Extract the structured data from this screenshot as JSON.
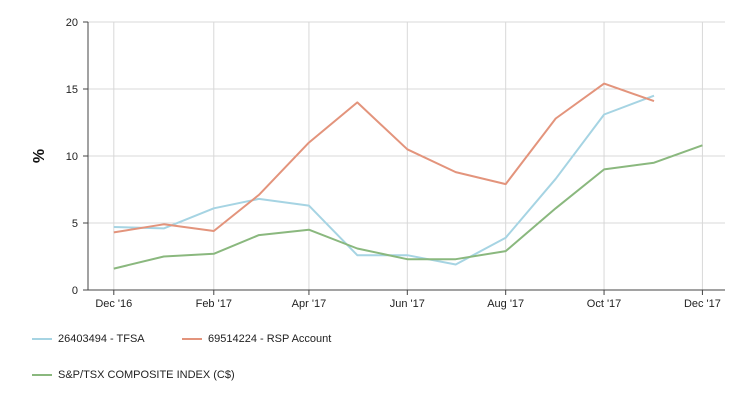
{
  "chart_data": {
    "type": "line",
    "title": "",
    "xlabel": "",
    "ylabel": "%",
    "ylim": [
      0,
      20
    ],
    "yticks": [
      0,
      5,
      10,
      15,
      20
    ],
    "xlim": [
      "2016-11-15",
      "2017-12-15"
    ],
    "xticks": [
      {
        "label": "Dec '16",
        "date": "2016-12-01"
      },
      {
        "label": "Feb '17",
        "date": "2017-02-01"
      },
      {
        "label": "Apr '17",
        "date": "2017-04-01"
      },
      {
        "label": "Jun '17",
        "date": "2017-06-01"
      },
      {
        "label": "Aug '17",
        "date": "2017-08-01"
      },
      {
        "label": "Oct '17",
        "date": "2017-10-01"
      },
      {
        "label": "Dec '17",
        "date": "2017-12-01"
      }
    ],
    "grid": true,
    "legend_position": "bottom",
    "series": [
      {
        "name": "26403494 - TFSA",
        "color": "#a6d4e3",
        "points": [
          {
            "x": "2016-12-01",
            "y": 4.7
          },
          {
            "x": "2017-01-01",
            "y": 4.6
          },
          {
            "x": "2017-02-01",
            "y": 6.1
          },
          {
            "x": "2017-03-01",
            "y": 6.8
          },
          {
            "x": "2017-04-01",
            "y": 6.3
          },
          {
            "x": "2017-05-01",
            "y": 2.6
          },
          {
            "x": "2017-06-01",
            "y": 2.6
          },
          {
            "x": "2017-07-01",
            "y": 1.9
          },
          {
            "x": "2017-08-01",
            "y": 3.9
          },
          {
            "x": "2017-09-01",
            "y": 8.3
          },
          {
            "x": "2017-10-01",
            "y": 13.1
          },
          {
            "x": "2017-11-01",
            "y": 14.5
          }
        ]
      },
      {
        "name": "69514224 - RSP Account",
        "color": "#e3947c",
        "points": [
          {
            "x": "2016-12-01",
            "y": 4.3
          },
          {
            "x": "2017-01-01",
            "y": 4.9
          },
          {
            "x": "2017-02-01",
            "y": 4.4
          },
          {
            "x": "2017-03-01",
            "y": 7.1
          },
          {
            "x": "2017-04-01",
            "y": 11.0
          },
          {
            "x": "2017-05-01",
            "y": 14.0
          },
          {
            "x": "2017-06-01",
            "y": 10.5
          },
          {
            "x": "2017-07-01",
            "y": 8.8
          },
          {
            "x": "2017-08-01",
            "y": 7.9
          },
          {
            "x": "2017-09-01",
            "y": 12.8
          },
          {
            "x": "2017-10-01",
            "y": 15.4
          },
          {
            "x": "2017-11-01",
            "y": 14.1
          }
        ]
      },
      {
        "name": "S&P/TSX COMPOSITE INDEX (C$)",
        "color": "#8ab87e",
        "points": [
          {
            "x": "2016-12-01",
            "y": 1.6
          },
          {
            "x": "2017-01-01",
            "y": 2.5
          },
          {
            "x": "2017-02-01",
            "y": 2.7
          },
          {
            "x": "2017-03-01",
            "y": 4.1
          },
          {
            "x": "2017-04-01",
            "y": 4.5
          },
          {
            "x": "2017-05-01",
            "y": 3.1
          },
          {
            "x": "2017-06-01",
            "y": 2.3
          },
          {
            "x": "2017-07-01",
            "y": 2.3
          },
          {
            "x": "2017-08-01",
            "y": 2.9
          },
          {
            "x": "2017-09-01",
            "y": 6.1
          },
          {
            "x": "2017-10-01",
            "y": 9.0
          },
          {
            "x": "2017-11-01",
            "y": 9.5
          },
          {
            "x": "2017-12-01",
            "y": 10.8
          }
        ]
      }
    ]
  }
}
